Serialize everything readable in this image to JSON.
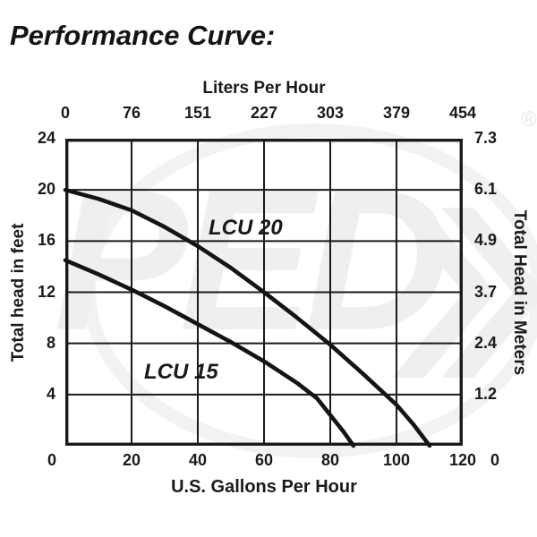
{
  "title": "Performance Curve:",
  "watermark": {
    "text": "PED",
    "registered": "®"
  },
  "chart_data": {
    "type": "line",
    "title": "Performance Curve:",
    "grid": true,
    "line_color": "#1a1a1a",
    "axes": {
      "top": {
        "label": "Liters Per Hour",
        "ticks": [
          "0",
          "76",
          "151",
          "227",
          "303",
          "379",
          "454"
        ],
        "range": [
          0,
          454
        ]
      },
      "bottom": {
        "label": "U.S. Gallons Per Hour",
        "ticks": [
          "0",
          "20",
          "40",
          "60",
          "80",
          "100",
          "120"
        ],
        "range": [
          0,
          120
        ]
      },
      "left": {
        "label": "Total head in feet",
        "ticks": [
          "24",
          "20",
          "16",
          "12",
          "8",
          "4",
          "0"
        ],
        "range": [
          0,
          24
        ]
      },
      "right": {
        "label": "Total Head in Meters",
        "ticks": [
          "7.3",
          "6.1",
          "4.9",
          "3.7",
          "2.4",
          "1.2",
          "0"
        ],
        "range": [
          0,
          7.3
        ]
      }
    },
    "series": [
      {
        "name": "LCU 20",
        "points": [
          [
            0,
            20
          ],
          [
            10,
            19.3
          ],
          [
            20,
            18.4
          ],
          [
            30,
            17.1
          ],
          [
            40,
            15.6
          ],
          [
            50,
            13.9
          ],
          [
            60,
            12
          ],
          [
            70,
            10
          ],
          [
            80,
            7.9
          ],
          [
            90,
            5.6
          ],
          [
            100,
            3.2
          ],
          [
            105,
            1.7
          ],
          [
            110,
            0
          ]
        ]
      },
      {
        "name": "LCU 15",
        "points": [
          [
            0,
            14.5
          ],
          [
            10,
            13.4
          ],
          [
            20,
            12.2
          ],
          [
            30,
            10.9
          ],
          [
            40,
            9.5
          ],
          [
            50,
            8.1
          ],
          [
            60,
            6.6
          ],
          [
            70,
            4.9
          ],
          [
            76,
            3.7
          ],
          [
            80,
            2.4
          ],
          [
            84,
            1.1
          ],
          [
            87,
            0
          ]
        ]
      }
    ]
  }
}
